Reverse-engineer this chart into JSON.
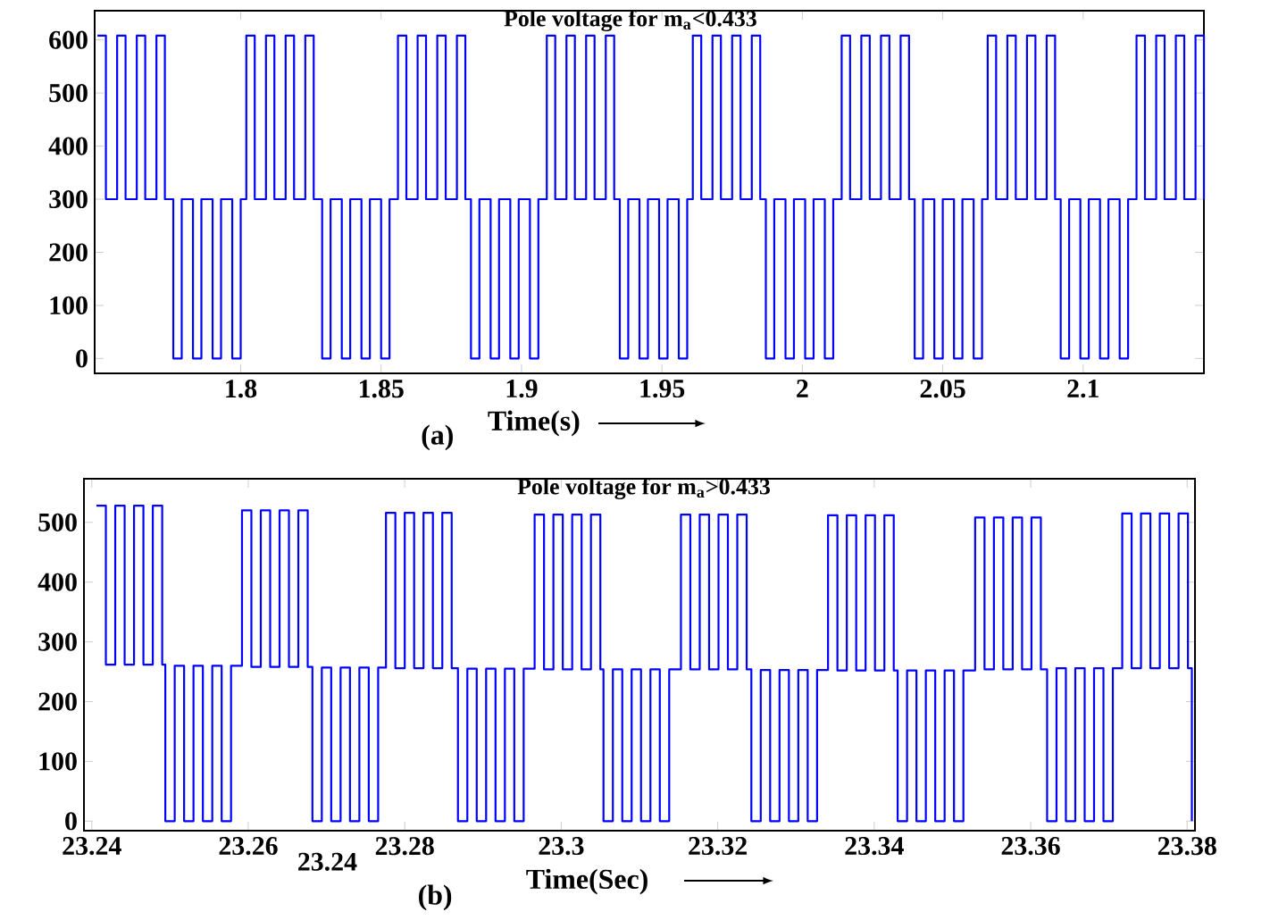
{
  "chart_data": [
    {
      "type": "step",
      "title": "Pole voltage for m$_{a}$<0.433",
      "xlabel": "Time(s)",
      "annotations": [
        "(a)"
      ],
      "color": "#0000ff",
      "xlim": [
        1.748,
        2.143
      ],
      "ylim": [
        -28,
        655
      ],
      "xticks": [
        1.8,
        1.85,
        1.9,
        1.95,
        2,
        2.05,
        2.1
      ],
      "yticks": [
        0,
        100,
        200,
        300,
        400,
        500,
        600
      ],
      "x": [
        1.749,
        1.752,
        1.756,
        1.759,
        1.763,
        1.766,
        1.77,
        1.773,
        1.776,
        1.779,
        1.783,
        1.786,
        1.79,
        1.793,
        1.797,
        1.8,
        1.802,
        1.805,
        1.809,
        1.812,
        1.816,
        1.819,
        1.823,
        1.826,
        1.829,
        1.832,
        1.836,
        1.839,
        1.843,
        1.846,
        1.85,
        1.853,
        1.856,
        1.859,
        1.863,
        1.866,
        1.87,
        1.873,
        1.877,
        1.88,
        1.882,
        1.885,
        1.889,
        1.892,
        1.896,
        1.899,
        1.903,
        1.906,
        1.909,
        1.912,
        1.916,
        1.919,
        1.923,
        1.926,
        1.93,
        1.933,
        1.935,
        1.938,
        1.942,
        1.945,
        1.949,
        1.952,
        1.956,
        1.959,
        1.961,
        1.964,
        1.968,
        1.971,
        1.975,
        1.978,
        1.982,
        1.985,
        1.987,
        1.99,
        1.994,
        1.997,
        2.001,
        2.004,
        2.008,
        2.011,
        2.014,
        2.017,
        2.021,
        2.024,
        2.028,
        2.031,
        2.035,
        2.038,
        2.04,
        2.043,
        2.047,
        2.05,
        2.054,
        2.057,
        2.061,
        2.064,
        2.066,
        2.069,
        2.073,
        2.076,
        2.08,
        2.083,
        2.087,
        2.09,
        2.092,
        2.095,
        2.099,
        2.102,
        2.106,
        2.109,
        2.113,
        2.116,
        2.119,
        2.122,
        2.126,
        2.129,
        2.133,
        2.136,
        2.14,
        2.143
      ],
      "values": [
        608,
        300,
        608,
        300,
        608,
        300,
        608,
        300,
        0,
        300,
        0,
        300,
        0,
        300,
        0,
        300,
        608,
        300,
        608,
        300,
        608,
        300,
        608,
        300,
        0,
        300,
        0,
        300,
        0,
        300,
        0,
        300,
        608,
        300,
        608,
        300,
        608,
        300,
        608,
        300,
        0,
        300,
        0,
        300,
        0,
        300,
        0,
        300,
        608,
        300,
        608,
        300,
        608,
        300,
        608,
        300,
        0,
        300,
        0,
        300,
        0,
        300,
        0,
        300,
        608,
        300,
        608,
        300,
        608,
        300,
        608,
        300,
        0,
        300,
        0,
        300,
        0,
        300,
        0,
        300,
        608,
        300,
        608,
        300,
        608,
        300,
        608,
        300,
        0,
        300,
        0,
        300,
        0,
        300,
        0,
        300,
        608,
        300,
        608,
        300,
        608,
        300,
        608,
        300,
        0,
        300,
        0,
        300,
        0,
        300,
        0,
        300,
        608,
        300,
        608,
        300,
        608,
        300,
        608,
        300
      ]
    },
    {
      "type": "step",
      "title": "Pole voltage for m$_{a}$>0.433",
      "xlabel": "Time(Sec)",
      "annotations": [
        "(b)",
        "23.24"
      ],
      "color": "#0000ff",
      "xlim": [
        23.239,
        23.381
      ],
      "ylim": [
        -16,
        573
      ],
      "xticks": [
        23.24,
        23.26,
        23.28,
        23.3,
        23.32,
        23.34,
        23.36,
        23.38
      ],
      "yticks": [
        0,
        100,
        200,
        300,
        400,
        500
      ],
      "x": [
        23.2406,
        23.2418,
        23.243,
        23.2442,
        23.2454,
        23.2466,
        23.2478,
        23.249,
        23.2494,
        23.2506,
        23.2518,
        23.253,
        23.2542,
        23.2554,
        23.2566,
        23.2578,
        23.2592,
        23.2604,
        23.2616,
        23.2628,
        23.264,
        23.2652,
        23.2664,
        23.2676,
        23.2682,
        23.2694,
        23.2706,
        23.2718,
        23.273,
        23.2742,
        23.2754,
        23.2766,
        23.2776,
        23.2788,
        23.28,
        23.2812,
        23.2824,
        23.2836,
        23.2848,
        23.286,
        23.2868,
        23.288,
        23.2892,
        23.2904,
        23.2916,
        23.2928,
        23.294,
        23.2952,
        23.2966,
        23.2978,
        23.299,
        23.3002,
        23.3014,
        23.3026,
        23.3038,
        23.305,
        23.3054,
        23.3066,
        23.3078,
        23.309,
        23.3102,
        23.3114,
        23.3126,
        23.3138,
        23.3153,
        23.3165,
        23.3177,
        23.3189,
        23.3201,
        23.3213,
        23.3225,
        23.3237,
        23.3243,
        23.3255,
        23.3267,
        23.3279,
        23.3291,
        23.3303,
        23.3315,
        23.3327,
        23.3341,
        23.3353,
        23.3365,
        23.3377,
        23.3389,
        23.3401,
        23.3413,
        23.3425,
        23.343,
        23.3442,
        23.3454,
        23.3466,
        23.3478,
        23.349,
        23.3502,
        23.3514,
        23.3529,
        23.3541,
        23.3553,
        23.3565,
        23.3577,
        23.3589,
        23.3601,
        23.3613,
        23.3621,
        23.3633,
        23.3645,
        23.3657,
        23.3669,
        23.3681,
        23.3693,
        23.3705,
        23.3717,
        23.3729,
        23.3741,
        23.3753,
        23.3765,
        23.3777,
        23.3789,
        23.3801,
        23.3806
      ],
      "values": [
        528,
        262,
        528,
        262,
        528,
        262,
        528,
        262,
        0,
        260,
        0,
        260,
        0,
        260,
        0,
        260,
        520,
        258,
        520,
        258,
        520,
        258,
        520,
        258,
        0,
        257,
        0,
        257,
        0,
        257,
        0,
        257,
        516,
        256,
        516,
        256,
        516,
        256,
        516,
        256,
        0,
        255,
        0,
        255,
        0,
        255,
        0,
        255,
        513,
        254,
        513,
        254,
        513,
        254,
        513,
        254,
        0,
        254,
        0,
        254,
        0,
        254,
        0,
        254,
        513,
        254,
        513,
        254,
        513,
        254,
        513,
        254,
        0,
        253,
        0,
        253,
        0,
        253,
        0,
        253,
        512,
        252,
        512,
        252,
        512,
        252,
        512,
        252,
        0,
        252,
        0,
        252,
        0,
        252,
        0,
        252,
        508,
        254,
        508,
        254,
        508,
        254,
        508,
        254,
        0,
        256,
        0,
        256,
        0,
        256,
        0,
        256,
        515,
        256,
        515,
        256,
        515,
        256,
        515,
        256,
        0
      ]
    }
  ]
}
